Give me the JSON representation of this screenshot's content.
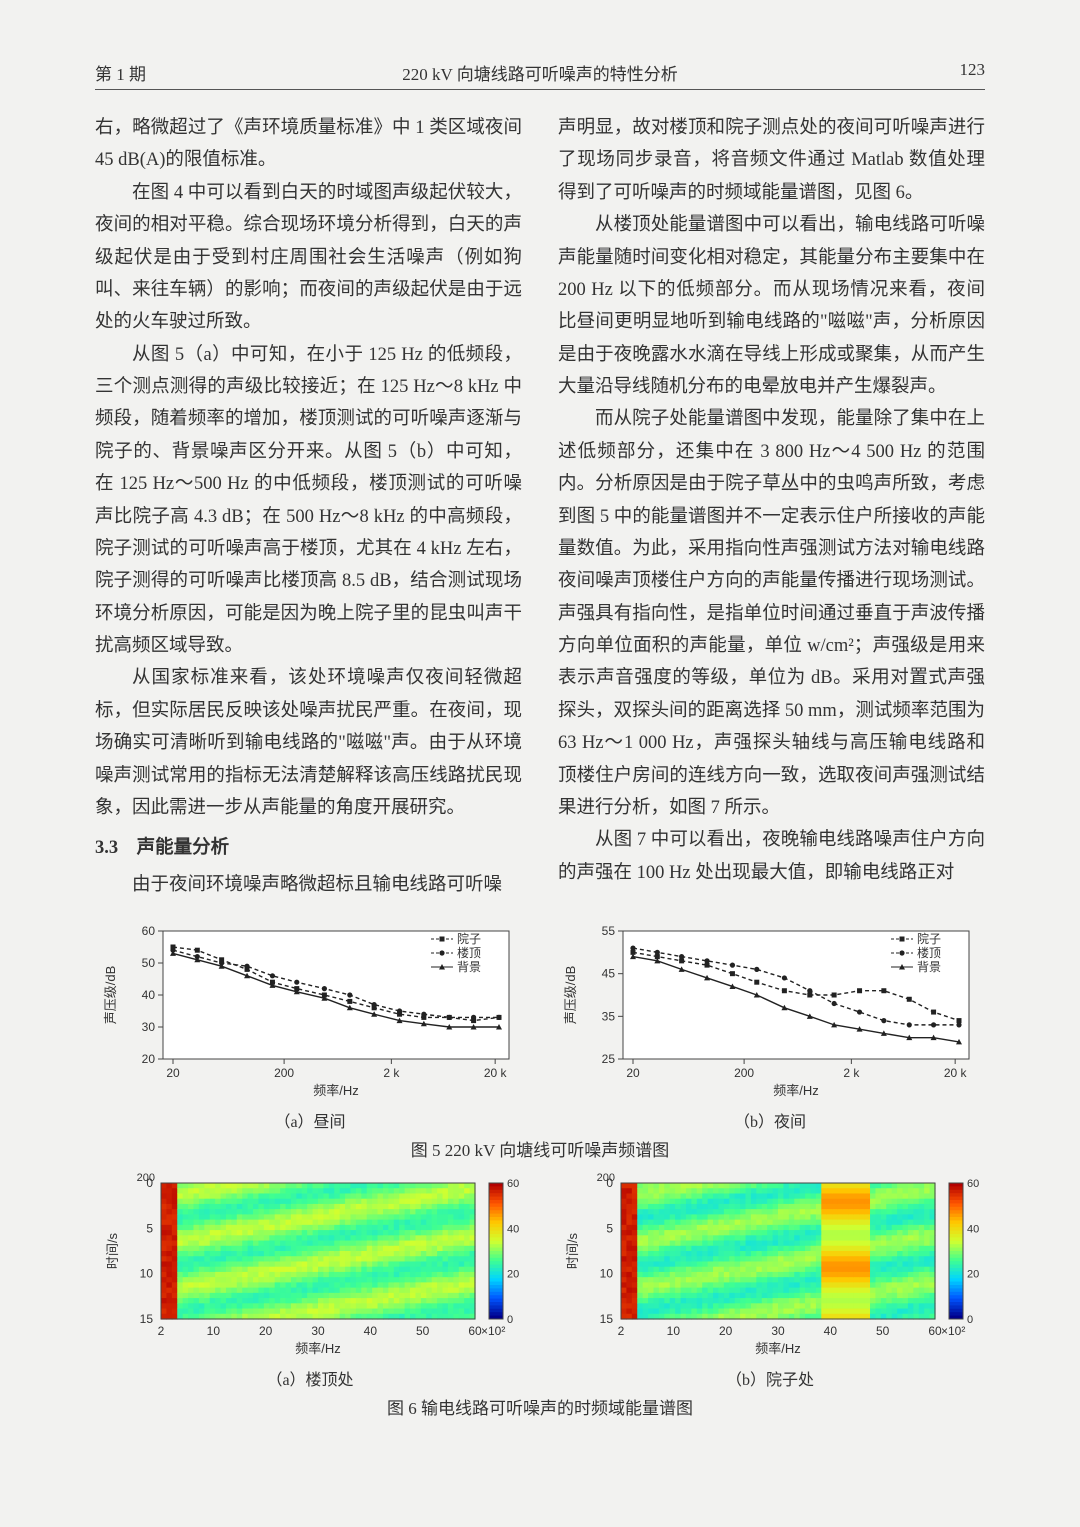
{
  "header": {
    "issue": "第 1 期",
    "title": "220 kV 向塘线路可听噪声的特性分析",
    "page": "123"
  },
  "left_col": {
    "p1": "右，略微超过了《声环境质量标准》中 1 类区域夜间 45 dB(A)的限值标准。",
    "p2": "在图 4 中可以看到白天的时域图声级起伏较大，夜间的相对平稳。综合现场环境分析得到，白天的声级起伏是由于受到村庄周围社会生活噪声（例如狗叫、来往车辆）的影响；而夜间的声级起伏是由于远处的火车驶过所致。",
    "p3": "从图 5（a）中可知，在小于 125 Hz 的低频段，三个测点测得的声级比较接近；在 125 Hz～8 kHz 中频段，随着频率的增加，楼顶测试的可听噪声逐渐与院子的、背景噪声区分开来。从图 5（b）中可知，在 125 Hz～500 Hz 的中低频段，楼顶测试的可听噪声比院子高 4.3 dB；在 500 Hz～8 kHz 的中高频段，院子测试的可听噪声高于楼顶，尤其在 4 kHz 左右，院子测得的可听噪声比楼顶高 8.5 dB，结合测试现场环境分析原因，可能是因为晚上院子里的昆虫叫声干扰高频区域导致。",
    "p4": "从国家标准来看，该处环境噪声仅夜间轻微超标，但实际居民反映该处噪声扰民严重。在夜间，现场确实可清晰听到输电线路的\"嗞嗞\"声。由于从环境噪声测试常用的指标无法清楚解释该高压线路扰民现象，因此需进一步从声能量的角度开展研究。",
    "sec": "3.3　声能量分析",
    "p5": "由于夜间环境噪声略微超标且输电线路可听噪"
  },
  "right_col": {
    "p1": "声明显，故对楼顶和院子测点处的夜间可听噪声进行了现场同步录音，将音频文件通过 Matlab 数值处理得到了可听噪声的时频域能量谱图，见图 6。",
    "p2": "从楼顶处能量谱图中可以看出，输电线路可听噪声能量随时间变化相对稳定，其能量分布主要集中在 200 Hz 以下的低频部分。而从现场情况来看，夜间比昼间更明显地听到输电线路的\"嗞嗞\"声，分析原因是由于夜晚露水水滴在导线上形成或聚集，从而产生大量沿导线随机分布的电晕放电并产生爆裂声。",
    "p3": "而从院子处能量谱图中发现，能量除了集中在上述低频部分，还集中在 3 800 Hz～4 500 Hz 的范围内。分析原因是由于院子草丛中的虫鸣声所致，考虑到图 5 中的能量谱图并不一定表示住户所接收的声能量数值。为此，采用指向性声强测试方法对输电线路夜间噪声顶楼住户方向的声能量传播进行现场测试。声强具有指向性，是指单位时间通过垂直于声波传播方向单位面积的声能量，单位 w/cm²；声强级是用来表示声音强度的等级，单位为 dB。采用对置式声强探头，双探头间的距离选择 50 mm，测试频率范围为 63 Hz～1 000 Hz，声强探头轴线与高压输电线路和顶楼住户房间的连线方向一致，选取夜间声强测试结果进行分析，如图 7 所示。",
    "p4": "从图 7 中可以看出，夜晚输电线路噪声住户方向的声强在 100 Hz 处出现最大值，即输电线路正对"
  },
  "fig5": {
    "type": "line",
    "caption": "图 5 220 kV 向塘线可听噪声频谱图",
    "ylabel": "声压级/dB",
    "xlabel": "频率/Hz",
    "x_ticks": [
      "20",
      "200",
      "2 k",
      "20 k"
    ],
    "legend": [
      "院子",
      "楼顶",
      "背景"
    ],
    "legend_markers": [
      "square-dash",
      "circle-dash",
      "triangle-solid"
    ],
    "left": {
      "subcap": "（a）昼间",
      "ylim": [
        20,
        60
      ],
      "y_ticks": [
        20,
        30,
        40,
        50,
        60
      ],
      "series": {
        "yard": [
          [
            28,
            55
          ],
          [
            50,
            54
          ],
          [
            72,
            51
          ],
          [
            95,
            48
          ],
          [
            118,
            44
          ],
          [
            140,
            42
          ],
          [
            165,
            40
          ],
          [
            188,
            38
          ],
          [
            210,
            36
          ],
          [
            233,
            34
          ],
          [
            255,
            33
          ],
          [
            278,
            33
          ],
          [
            300,
            32
          ],
          [
            323,
            33
          ]
        ],
        "roof": [
          [
            28,
            54
          ],
          [
            50,
            52
          ],
          [
            72,
            50
          ],
          [
            95,
            49
          ],
          [
            118,
            46
          ],
          [
            140,
            44
          ],
          [
            165,
            42
          ],
          [
            188,
            40
          ],
          [
            210,
            37
          ],
          [
            233,
            35
          ],
          [
            255,
            34
          ],
          [
            278,
            33
          ],
          [
            300,
            33
          ],
          [
            323,
            33
          ]
        ],
        "bg": [
          [
            28,
            53
          ],
          [
            50,
            51
          ],
          [
            72,
            49
          ],
          [
            95,
            46
          ],
          [
            118,
            43
          ],
          [
            140,
            41
          ],
          [
            165,
            39
          ],
          [
            188,
            36
          ],
          [
            210,
            34
          ],
          [
            233,
            32
          ],
          [
            255,
            31
          ],
          [
            278,
            30
          ],
          [
            300,
            30
          ],
          [
            323,
            30
          ]
        ]
      }
    },
    "right": {
      "subcap": "（b）夜间",
      "ylim": [
        25,
        55
      ],
      "y_ticks": [
        25,
        35,
        45,
        55
      ],
      "series": {
        "yard": [
          [
            28,
            50
          ],
          [
            50,
            49
          ],
          [
            72,
            48
          ],
          [
            95,
            47
          ],
          [
            118,
            45
          ],
          [
            140,
            43
          ],
          [
            165,
            41
          ],
          [
            188,
            40
          ],
          [
            210,
            40
          ],
          [
            233,
            41
          ],
          [
            255,
            41
          ],
          [
            278,
            39
          ],
          [
            300,
            36
          ],
          [
            323,
            34
          ]
        ],
        "roof": [
          [
            28,
            51
          ],
          [
            50,
            50
          ],
          [
            72,
            49
          ],
          [
            95,
            48
          ],
          [
            118,
            47
          ],
          [
            140,
            46
          ],
          [
            165,
            44
          ],
          [
            188,
            41
          ],
          [
            210,
            38
          ],
          [
            233,
            36
          ],
          [
            255,
            34
          ],
          [
            278,
            33
          ],
          [
            300,
            33
          ],
          [
            323,
            33
          ]
        ],
        "bg": [
          [
            28,
            49
          ],
          [
            50,
            48
          ],
          [
            72,
            46
          ],
          [
            95,
            44
          ],
          [
            118,
            42
          ],
          [
            140,
            40
          ],
          [
            165,
            37
          ],
          [
            188,
            35
          ],
          [
            210,
            33
          ],
          [
            233,
            32
          ],
          [
            255,
            31
          ],
          [
            278,
            30
          ],
          [
            300,
            30
          ],
          [
            323,
            29
          ]
        ]
      }
    },
    "colors": {
      "line": "#222222",
      "grid": "#cccccc",
      "bg": "#ffffff"
    },
    "font_size_axis": 12,
    "font_size_legend": 12
  },
  "fig6": {
    "type": "heatmap",
    "caption": "图 6 输电线路可听噪声的时频域能量谱图",
    "ylabel": "时间/s",
    "xlabel": "频率/Hz",
    "x_ticks": [
      "2",
      "10",
      "20",
      "30",
      "40",
      "50",
      "60"
    ],
    "x_scale_note": "×10²",
    "y_ticks_left": [
      "0",
      "5",
      "10",
      "15"
    ],
    "y_sec": "200",
    "cbar_ticks": [
      "0",
      "20",
      "40",
      "60"
    ],
    "colormap": [
      "#00008b",
      "#0055ff",
      "#00d5ff",
      "#40ff90",
      "#d0ff30",
      "#ffc800",
      "#ff5500",
      "#b30000"
    ],
    "left": {
      "subcap": "（a）楼顶处",
      "hot_band_x": [
        0,
        0.04
      ],
      "mid_level": 0.45
    },
    "right": {
      "subcap": "（b）院子处",
      "hot_band_x": [
        0,
        0.04
      ],
      "secondary_band_x": [
        0.63,
        0.78
      ],
      "mid_level": 0.42
    }
  }
}
